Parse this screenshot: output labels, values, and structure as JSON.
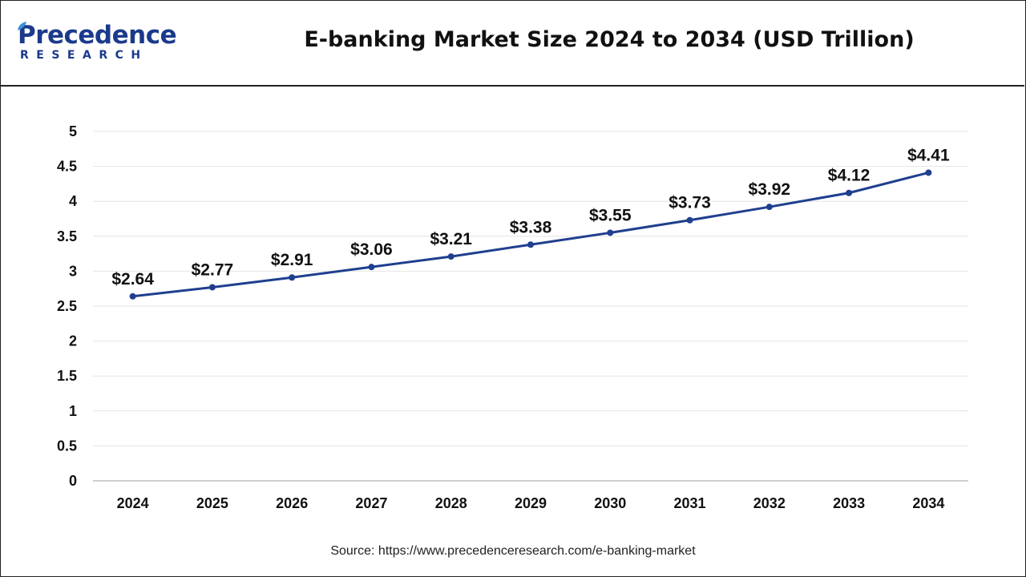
{
  "brand": {
    "name_main": "Precedence",
    "name_sub": "RESEARCH",
    "color": "#1b3a8c"
  },
  "source_text": "Source: https://www.precedenceresearch.com/e-banking-market",
  "chart_data": {
    "type": "line",
    "title": "E-banking Market Size 2024 to 2034 (USD Trillion)",
    "xlabel": "",
    "ylabel": "",
    "categories": [
      "2024",
      "2025",
      "2026",
      "2027",
      "2028",
      "2029",
      "2030",
      "2031",
      "2032",
      "2033",
      "2034"
    ],
    "series": [
      {
        "values": [
          2.64,
          2.77,
          2.91,
          3.06,
          3.21,
          3.38,
          3.55,
          3.73,
          3.92,
          4.12,
          4.41
        ],
        "labels": [
          "$2.64",
          "$2.77",
          "$2.91",
          "$3.06",
          "$3.21",
          "$3.38",
          "$3.55",
          "$3.73",
          "$3.92",
          "$4.12",
          "$4.41"
        ],
        "color": "#1f3f8f"
      }
    ],
    "ylim": [
      0,
      5
    ],
    "yticks": [
      "0",
      "0.5",
      "1",
      "1.5",
      "2",
      "2.5",
      "3",
      "3.5",
      "4",
      "4.5",
      "5"
    ],
    "grid": true,
    "legend": "none"
  }
}
